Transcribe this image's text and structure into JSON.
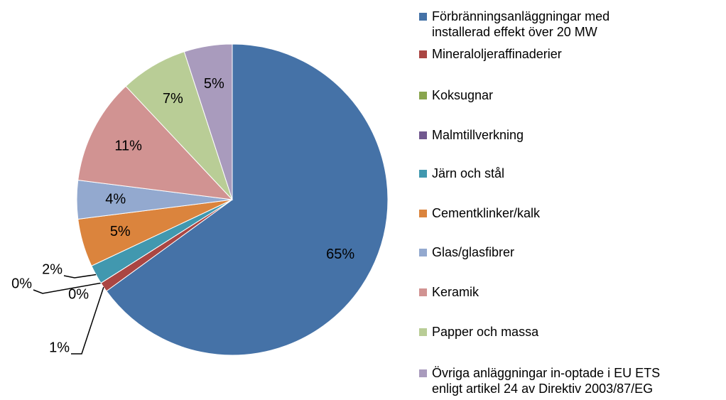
{
  "chart_data": {
    "type": "pie",
    "categories": [
      "Förbränningsanläggningar med\ninstallerad effekt över 20 MW",
      "Mineraloljeraffinaderier",
      "Koksugnar",
      "Malmtillverkning",
      "Järn och stål",
      "Cementklinker/kalk",
      "Glas/glasfibrer",
      "Keramik",
      "Papper och massa",
      "Övriga anläggningar in-optade i EU ETS\nenligt artikel 24 av Direktiv 2003/87/EG"
    ],
    "values": [
      65,
      1,
      0,
      0,
      2,
      5,
      4,
      11,
      7,
      5
    ],
    "value_labels": [
      "65%",
      "1%",
      "0%",
      "0%",
      "2%",
      "5%",
      "4%",
      "11%",
      "7%",
      "5%"
    ],
    "colors": [
      "#4572a7",
      "#aa4643",
      "#89a54e",
      "#71588f",
      "#4198af",
      "#db843d",
      "#93a9cf",
      "#d19392",
      "#b9cd96",
      "#a99bbd"
    ],
    "legend": "right"
  }
}
